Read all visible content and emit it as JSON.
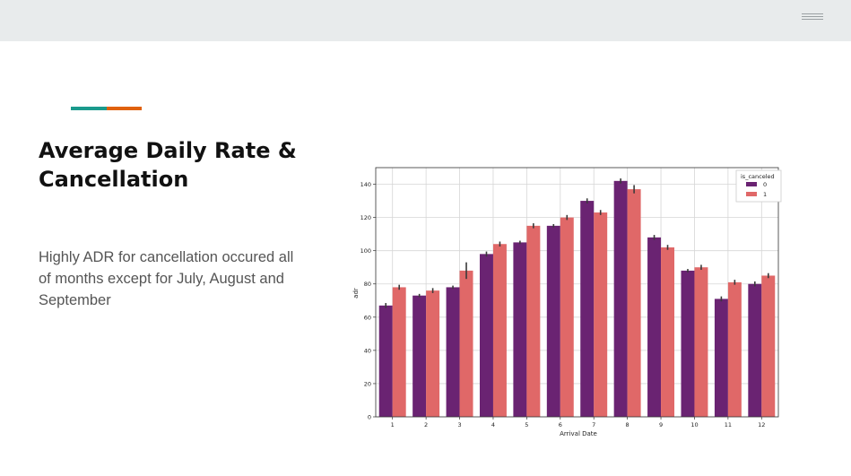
{
  "slide": {
    "title": "Average Daily Rate & Cancellation",
    "body": "Highly ADR for cancellation occured all of months except for July, August and September"
  },
  "colors": {
    "topbar": "#e8ebec",
    "accent_teal": "#1a9a8c",
    "accent_orange": "#e0610e",
    "series_0": "#6a2372",
    "series_1": "#e06868"
  },
  "chart_data": {
    "type": "bar",
    "title": "",
    "xlabel": "Arrival Date",
    "ylabel": "adr",
    "categories": [
      "1",
      "2",
      "3",
      "4",
      "5",
      "6",
      "7",
      "8",
      "9",
      "10",
      "11",
      "12"
    ],
    "ylim": [
      0,
      150
    ],
    "yticks": [
      0,
      20,
      40,
      60,
      80,
      100,
      120,
      140
    ],
    "grid": true,
    "legend": {
      "title": "is_canceled",
      "position": "top-right"
    },
    "series": [
      {
        "name": "0",
        "values": [
          67,
          73,
          78,
          98,
          105,
          115,
          130,
          142,
          108,
          88,
          71,
          80
        ],
        "errors": [
          1.5,
          1,
          1,
          1.5,
          1,
          1,
          1.5,
          1.5,
          1.5,
          1,
          1.5,
          1.5
        ]
      },
      {
        "name": "1",
        "values": [
          78,
          76,
          88,
          104,
          115,
          120,
          123,
          137,
          102,
          90,
          81,
          85
        ],
        "errors": [
          1.5,
          1.5,
          5,
          1.5,
          1.5,
          1.5,
          1.5,
          2.5,
          1.5,
          1.5,
          1.5,
          1.5
        ]
      }
    ]
  }
}
